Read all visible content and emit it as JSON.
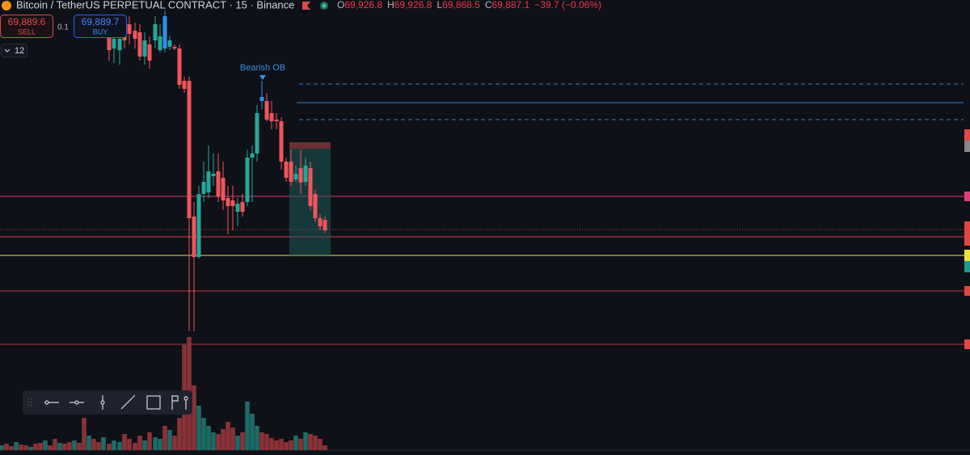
{
  "header": {
    "title": "Bitcoin / TetherUS PERPETUAL CONTRACT · 15 · Binance",
    "ohlc": [
      {
        "label": "O",
        "value": "69,926.8"
      },
      {
        "label": "H",
        "value": "69,926.8"
      },
      {
        "label": "L",
        "value": "69,868.5"
      },
      {
        "label": "C",
        "value": "69,887.1"
      }
    ],
    "change": "−39.7 (−0.06%)"
  },
  "trade": {
    "sell_price": "69,889.6",
    "sell_label": "SELL",
    "quantity": "0.1",
    "buy_price": "69,889.7",
    "buy_label": "BUY"
  },
  "indicators_count": "12",
  "annotation": "Bearish OB"
}
